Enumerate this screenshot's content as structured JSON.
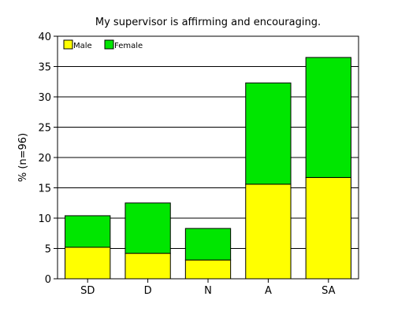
{
  "chart_data": {
    "type": "bar",
    "stacked": true,
    "title": "My supervisor is affirming and encouraging.",
    "xlabel": "",
    "ylabel": "% (n=96)",
    "categories": [
      "SD",
      "D",
      "N",
      "A",
      "SA"
    ],
    "series": [
      {
        "name": "Male",
        "color": "#ffff00",
        "values": [
          5.2,
          4.2,
          3.1,
          15.6,
          16.7
        ]
      },
      {
        "name": "Female",
        "color": "#00e600",
        "values": [
          5.2,
          8.3,
          5.2,
          16.7,
          19.8
        ]
      }
    ],
    "ylim": [
      0,
      40
    ],
    "yticks": [
      0,
      5,
      10,
      15,
      20,
      25,
      30,
      35,
      40
    ],
    "grid": true,
    "legend_position": "top-left"
  }
}
